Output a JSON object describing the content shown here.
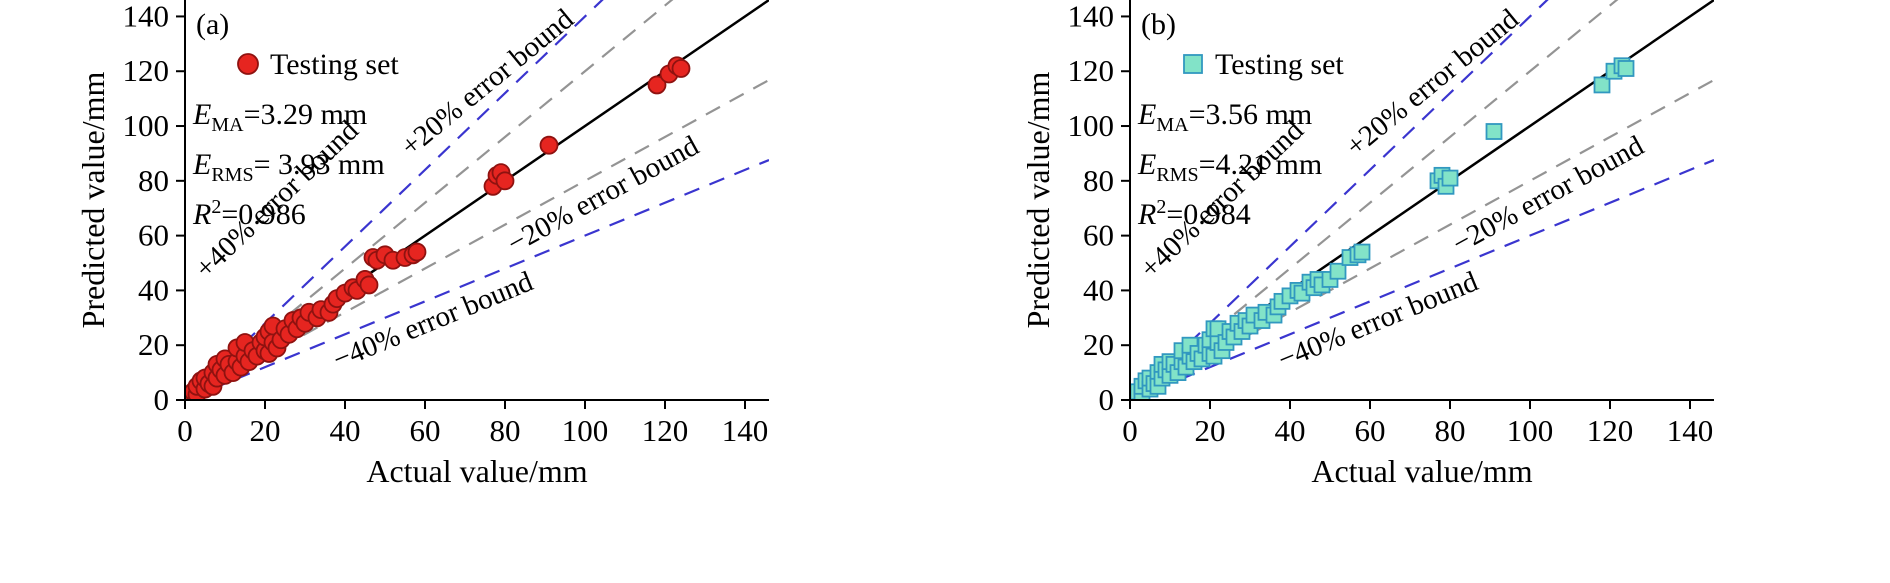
{
  "chart_data": [
    {
      "type": "scatter",
      "panel_label": "(a)",
      "xlabel": "Actual value/mm",
      "ylabel": "Predicted value/mm",
      "xlim": [
        0,
        146
      ],
      "ylim": [
        0,
        146
      ],
      "xticks": [
        0,
        20,
        40,
        60,
        80,
        100,
        120,
        140
      ],
      "yticks": [
        0,
        20,
        40,
        60,
        80,
        100,
        120,
        140
      ],
      "grid": false,
      "legend": {
        "label": "Testing set",
        "position": "upper-left"
      },
      "marker": {
        "shape": "circle",
        "fill": "#e62520",
        "edge": "#8f1210",
        "size": 8.5
      },
      "stats": [
        {
          "base": "E",
          "script": "MA",
          "script_type": "sub",
          "rest": "=3.29 mm"
        },
        {
          "base": "E",
          "script": "RMS",
          "script_type": "sub",
          "rest": "= 3.93 mm"
        },
        {
          "base": "R",
          "script": "2",
          "script_type": "sup",
          "rest": "=0.986"
        }
      ],
      "identity_line": {
        "slope": 1,
        "color": "#000000",
        "style": "solid"
      },
      "error_bounds": [
        {
          "slope": 1.4,
          "label": "+40% error bound",
          "color": "#3a35cf",
          "style": "dashed"
        },
        {
          "slope": 1.2,
          "label": "+20% error bound",
          "color": "#949494",
          "style": "dashed"
        },
        {
          "slope": 0.8,
          "label": "−20% error bound",
          "color": "#949494",
          "style": "dashed"
        },
        {
          "slope": 0.6,
          "label": "−40% error bound",
          "color": "#3a35cf",
          "style": "dashed"
        }
      ],
      "points": [
        [
          1,
          1
        ],
        [
          2,
          3
        ],
        [
          3,
          2
        ],
        [
          3,
          5
        ],
        [
          4,
          7
        ],
        [
          5,
          4
        ],
        [
          5,
          8
        ],
        [
          6,
          6
        ],
        [
          7,
          10
        ],
        [
          7,
          5
        ],
        [
          8,
          8
        ],
        [
          8,
          13
        ],
        [
          9,
          11
        ],
        [
          10,
          9
        ],
        [
          10,
          15
        ],
        [
          11,
          13
        ],
        [
          12,
          10
        ],
        [
          13,
          14
        ],
        [
          13,
          19
        ],
        [
          14,
          12
        ],
        [
          15,
          16
        ],
        [
          15,
          21
        ],
        [
          16,
          14
        ],
        [
          17,
          18
        ],
        [
          18,
          16
        ],
        [
          19,
          21
        ],
        [
          20,
          18
        ],
        [
          20,
          23
        ],
        [
          21,
          25
        ],
        [
          21,
          17
        ],
        [
          22,
          21
        ],
        [
          22,
          27
        ],
        [
          23,
          19
        ],
        [
          24,
          22
        ],
        [
          25,
          26
        ],
        [
          26,
          24
        ],
        [
          27,
          29
        ],
        [
          28,
          26
        ],
        [
          29,
          30
        ],
        [
          30,
          28
        ],
        [
          31,
          32
        ],
        [
          33,
          30
        ],
        [
          34,
          33
        ],
        [
          36,
          32
        ],
        [
          37,
          35
        ],
        [
          38,
          37
        ],
        [
          40,
          39
        ],
        [
          42,
          41
        ],
        [
          43,
          40
        ],
        [
          45,
          44
        ],
        [
          46,
          42
        ],
        [
          47,
          52
        ],
        [
          48,
          51
        ],
        [
          50,
          53
        ],
        [
          52,
          51
        ],
        [
          55,
          52
        ],
        [
          57,
          53
        ],
        [
          58,
          54
        ],
        [
          77,
          78
        ],
        [
          78,
          82
        ],
        [
          79,
          83
        ],
        [
          80,
          80
        ],
        [
          91,
          93
        ],
        [
          118,
          115
        ],
        [
          121,
          119
        ],
        [
          123,
          122
        ],
        [
          124,
          121
        ]
      ]
    },
    {
      "type": "scatter",
      "panel_label": "(b)",
      "xlabel": "Actual value/mm",
      "ylabel": "Predicted value/mm",
      "xlim": [
        0,
        146
      ],
      "ylim": [
        0,
        146
      ],
      "xticks": [
        0,
        20,
        40,
        60,
        80,
        100,
        120,
        140
      ],
      "yticks": [
        0,
        20,
        40,
        60,
        80,
        100,
        120,
        140
      ],
      "grid": false,
      "legend": {
        "label": "Testing set",
        "position": "upper-left"
      },
      "marker": {
        "shape": "square",
        "fill": "#82e3c8",
        "edge": "#3198c0",
        "size": 7.5
      },
      "stats": [
        {
          "base": "E",
          "script": "MA",
          "script_type": "sub",
          "rest": "=3.56 mm"
        },
        {
          "base": "E",
          "script": "RMS",
          "script_type": "sub",
          "rest": "=4.21 mm"
        },
        {
          "base": "R",
          "script": "2",
          "script_type": "sup",
          "rest": "=0.984"
        }
      ],
      "identity_line": {
        "slope": 1,
        "color": "#000000",
        "style": "solid"
      },
      "error_bounds": [
        {
          "slope": 1.4,
          "label": "+40% error bound",
          "color": "#3a35cf",
          "style": "dashed"
        },
        {
          "slope": 1.2,
          "label": "+20% error bound",
          "color": "#949494",
          "style": "dashed"
        },
        {
          "slope": 0.8,
          "label": "−20% error bound",
          "color": "#949494",
          "style": "dashed"
        },
        {
          "slope": 0.6,
          "label": "−40% error bound",
          "color": "#3a35cf",
          "style": "dashed"
        }
      ],
      "points": [
        [
          1,
          1
        ],
        [
          2,
          3
        ],
        [
          3,
          2
        ],
        [
          3,
          5
        ],
        [
          4,
          7
        ],
        [
          5,
          4
        ],
        [
          5,
          8
        ],
        [
          6,
          6
        ],
        [
          7,
          10
        ],
        [
          7,
          5
        ],
        [
          8,
          8
        ],
        [
          8,
          13
        ],
        [
          9,
          11
        ],
        [
          10,
          9
        ],
        [
          10,
          14
        ],
        [
          11,
          13
        ],
        [
          12,
          10
        ],
        [
          13,
          14
        ],
        [
          13,
          18
        ],
        [
          14,
          12
        ],
        [
          15,
          16
        ],
        [
          15,
          20
        ],
        [
          16,
          14
        ],
        [
          17,
          17
        ],
        [
          18,
          15
        ],
        [
          19,
          20
        ],
        [
          20,
          17
        ],
        [
          20,
          22
        ],
        [
          21,
          26
        ],
        [
          21,
          16
        ],
        [
          22,
          21
        ],
        [
          22,
          26
        ],
        [
          23,
          18
        ],
        [
          24,
          21
        ],
        [
          25,
          25
        ],
        [
          26,
          23
        ],
        [
          27,
          28
        ],
        [
          28,
          25
        ],
        [
          29,
          29
        ],
        [
          30,
          27
        ],
        [
          31,
          31
        ],
        [
          33,
          29
        ],
        [
          34,
          32
        ],
        [
          36,
          31
        ],
        [
          37,
          34
        ],
        [
          38,
          36
        ],
        [
          40,
          38
        ],
        [
          42,
          40
        ],
        [
          43,
          39
        ],
        [
          45,
          43
        ],
        [
          46,
          41
        ],
        [
          47,
          44
        ],
        [
          48,
          42
        ],
        [
          50,
          44
        ],
        [
          52,
          47
        ],
        [
          55,
          52
        ],
        [
          57,
          53
        ],
        [
          58,
          54
        ],
        [
          77,
          80
        ],
        [
          78,
          82
        ],
        [
          79,
          78
        ],
        [
          80,
          81
        ],
        [
          91,
          98
        ],
        [
          118,
          115
        ],
        [
          121,
          120
        ],
        [
          123,
          122
        ],
        [
          124,
          121
        ]
      ]
    }
  ]
}
